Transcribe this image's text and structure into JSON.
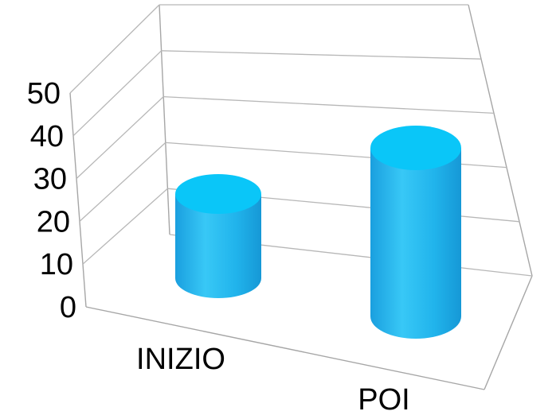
{
  "chart_data": {
    "type": "bar",
    "style": "3d-cylinder",
    "categories": [
      "INIZIO",
      "POI"
    ],
    "values": [
      20,
      40
    ],
    "ylim": [
      0,
      50
    ],
    "yticks": [
      0,
      10,
      20,
      30,
      40,
      50
    ],
    "grid": true,
    "legend": "none",
    "bar_color": "#1ab2ec",
    "bar_highlight": "#38cdfb",
    "bar_top_color": "#0ac6f8"
  }
}
